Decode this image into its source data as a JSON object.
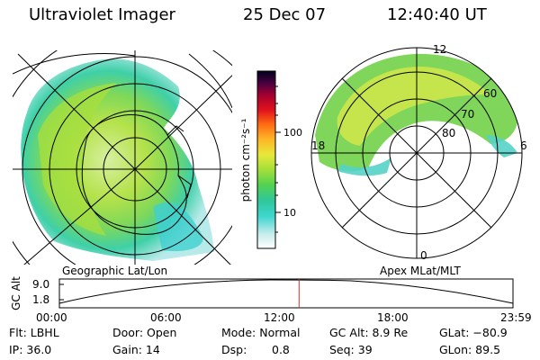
{
  "header": {
    "instrument": "Ultraviolet Imager",
    "date": "25 Dec 07",
    "time": "12:40:40 UT"
  },
  "colorbar": {
    "unit_label": "photon cm⁻²s⁻¹",
    "ticks": [
      "100",
      "10"
    ]
  },
  "left_panel": {
    "caption": "Geographic Lat/Lon"
  },
  "right_panel": {
    "caption": "Apex MLat/MLT",
    "mlt_labels": {
      "top": "12",
      "left": "18",
      "right": "6",
      "bottom": "0"
    },
    "lat_labels": [
      "60",
      "70",
      "80"
    ]
  },
  "altitude_strip": {
    "axis_label": "GC Alt",
    "y_ticks": [
      "9.0",
      "1.8"
    ],
    "x_ticks": [
      "00:00",
      "06:00",
      "12:00",
      "18:00",
      "23:59"
    ],
    "marker_time_hours": 12.68
  },
  "status": {
    "flt": "Flt: LBHL",
    "door": "Door: Open",
    "mode": "Mode: Normal",
    "gc_alt": "GC Alt: 8.9 Re",
    "glat": "GLat: −80.9",
    "ip": "IP: 36.0",
    "gain": "Gain: 14",
    "dsp_label": "Dsp:",
    "dsp_value": "0.8",
    "seq": "Seq: 39",
    "glon": "GLon: 89.5"
  },
  "colors": {
    "marker": "#c0392b",
    "colorbar_stops": [
      "#ffffff",
      "#c8ecec",
      "#3fd6d0",
      "#2fc79a",
      "#55d24f",
      "#a9e03a",
      "#e9e83a",
      "#ffb226",
      "#ff6a13",
      "#e1121d",
      "#a9002f",
      "#4a0040",
      "#000020"
    ]
  }
}
